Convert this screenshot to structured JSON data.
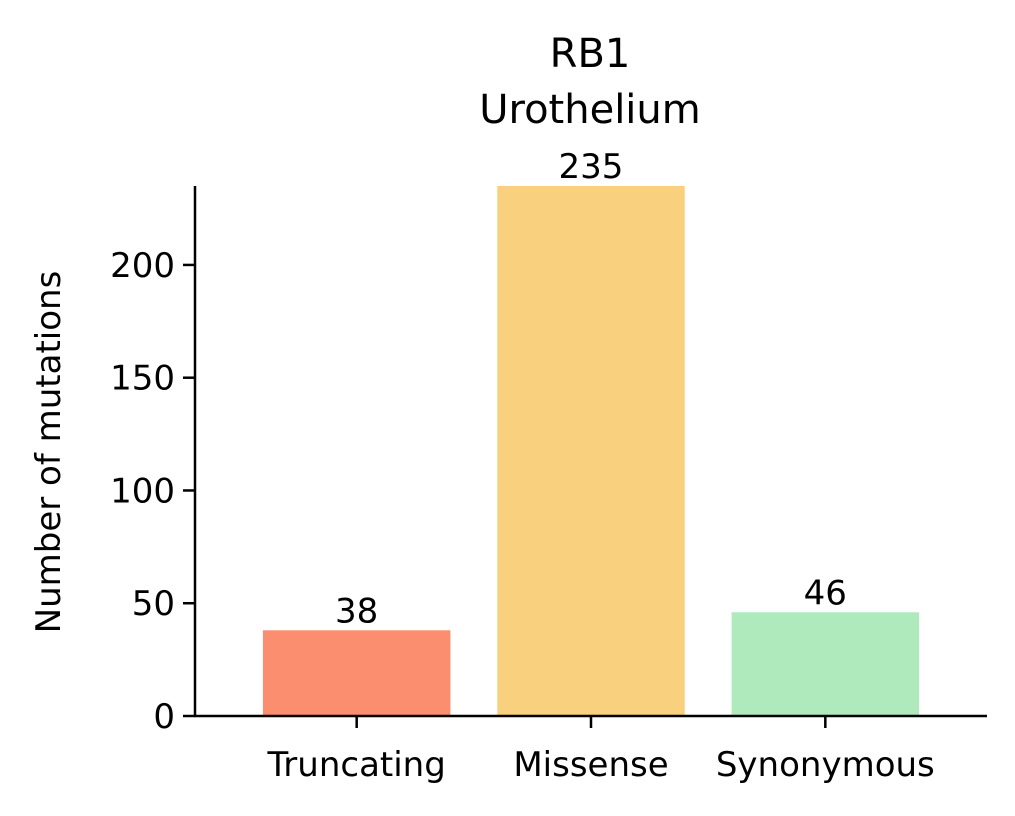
{
  "chart_data": {
    "type": "bar",
    "title_lines": [
      "RB1",
      "Urothelium"
    ],
    "categories": [
      "Truncating",
      "Missense",
      "Synonymous"
    ],
    "values": [
      38,
      235,
      46
    ],
    "colors": [
      "#fa8e6f",
      "#f8d07e",
      "#aeeabc"
    ],
    "xlabel": "",
    "ylabel": "Number of mutations",
    "ylim": [
      0,
      235
    ],
    "yticks": [
      0,
      50,
      100,
      150,
      200
    ],
    "grid": false,
    "legend": "none"
  }
}
